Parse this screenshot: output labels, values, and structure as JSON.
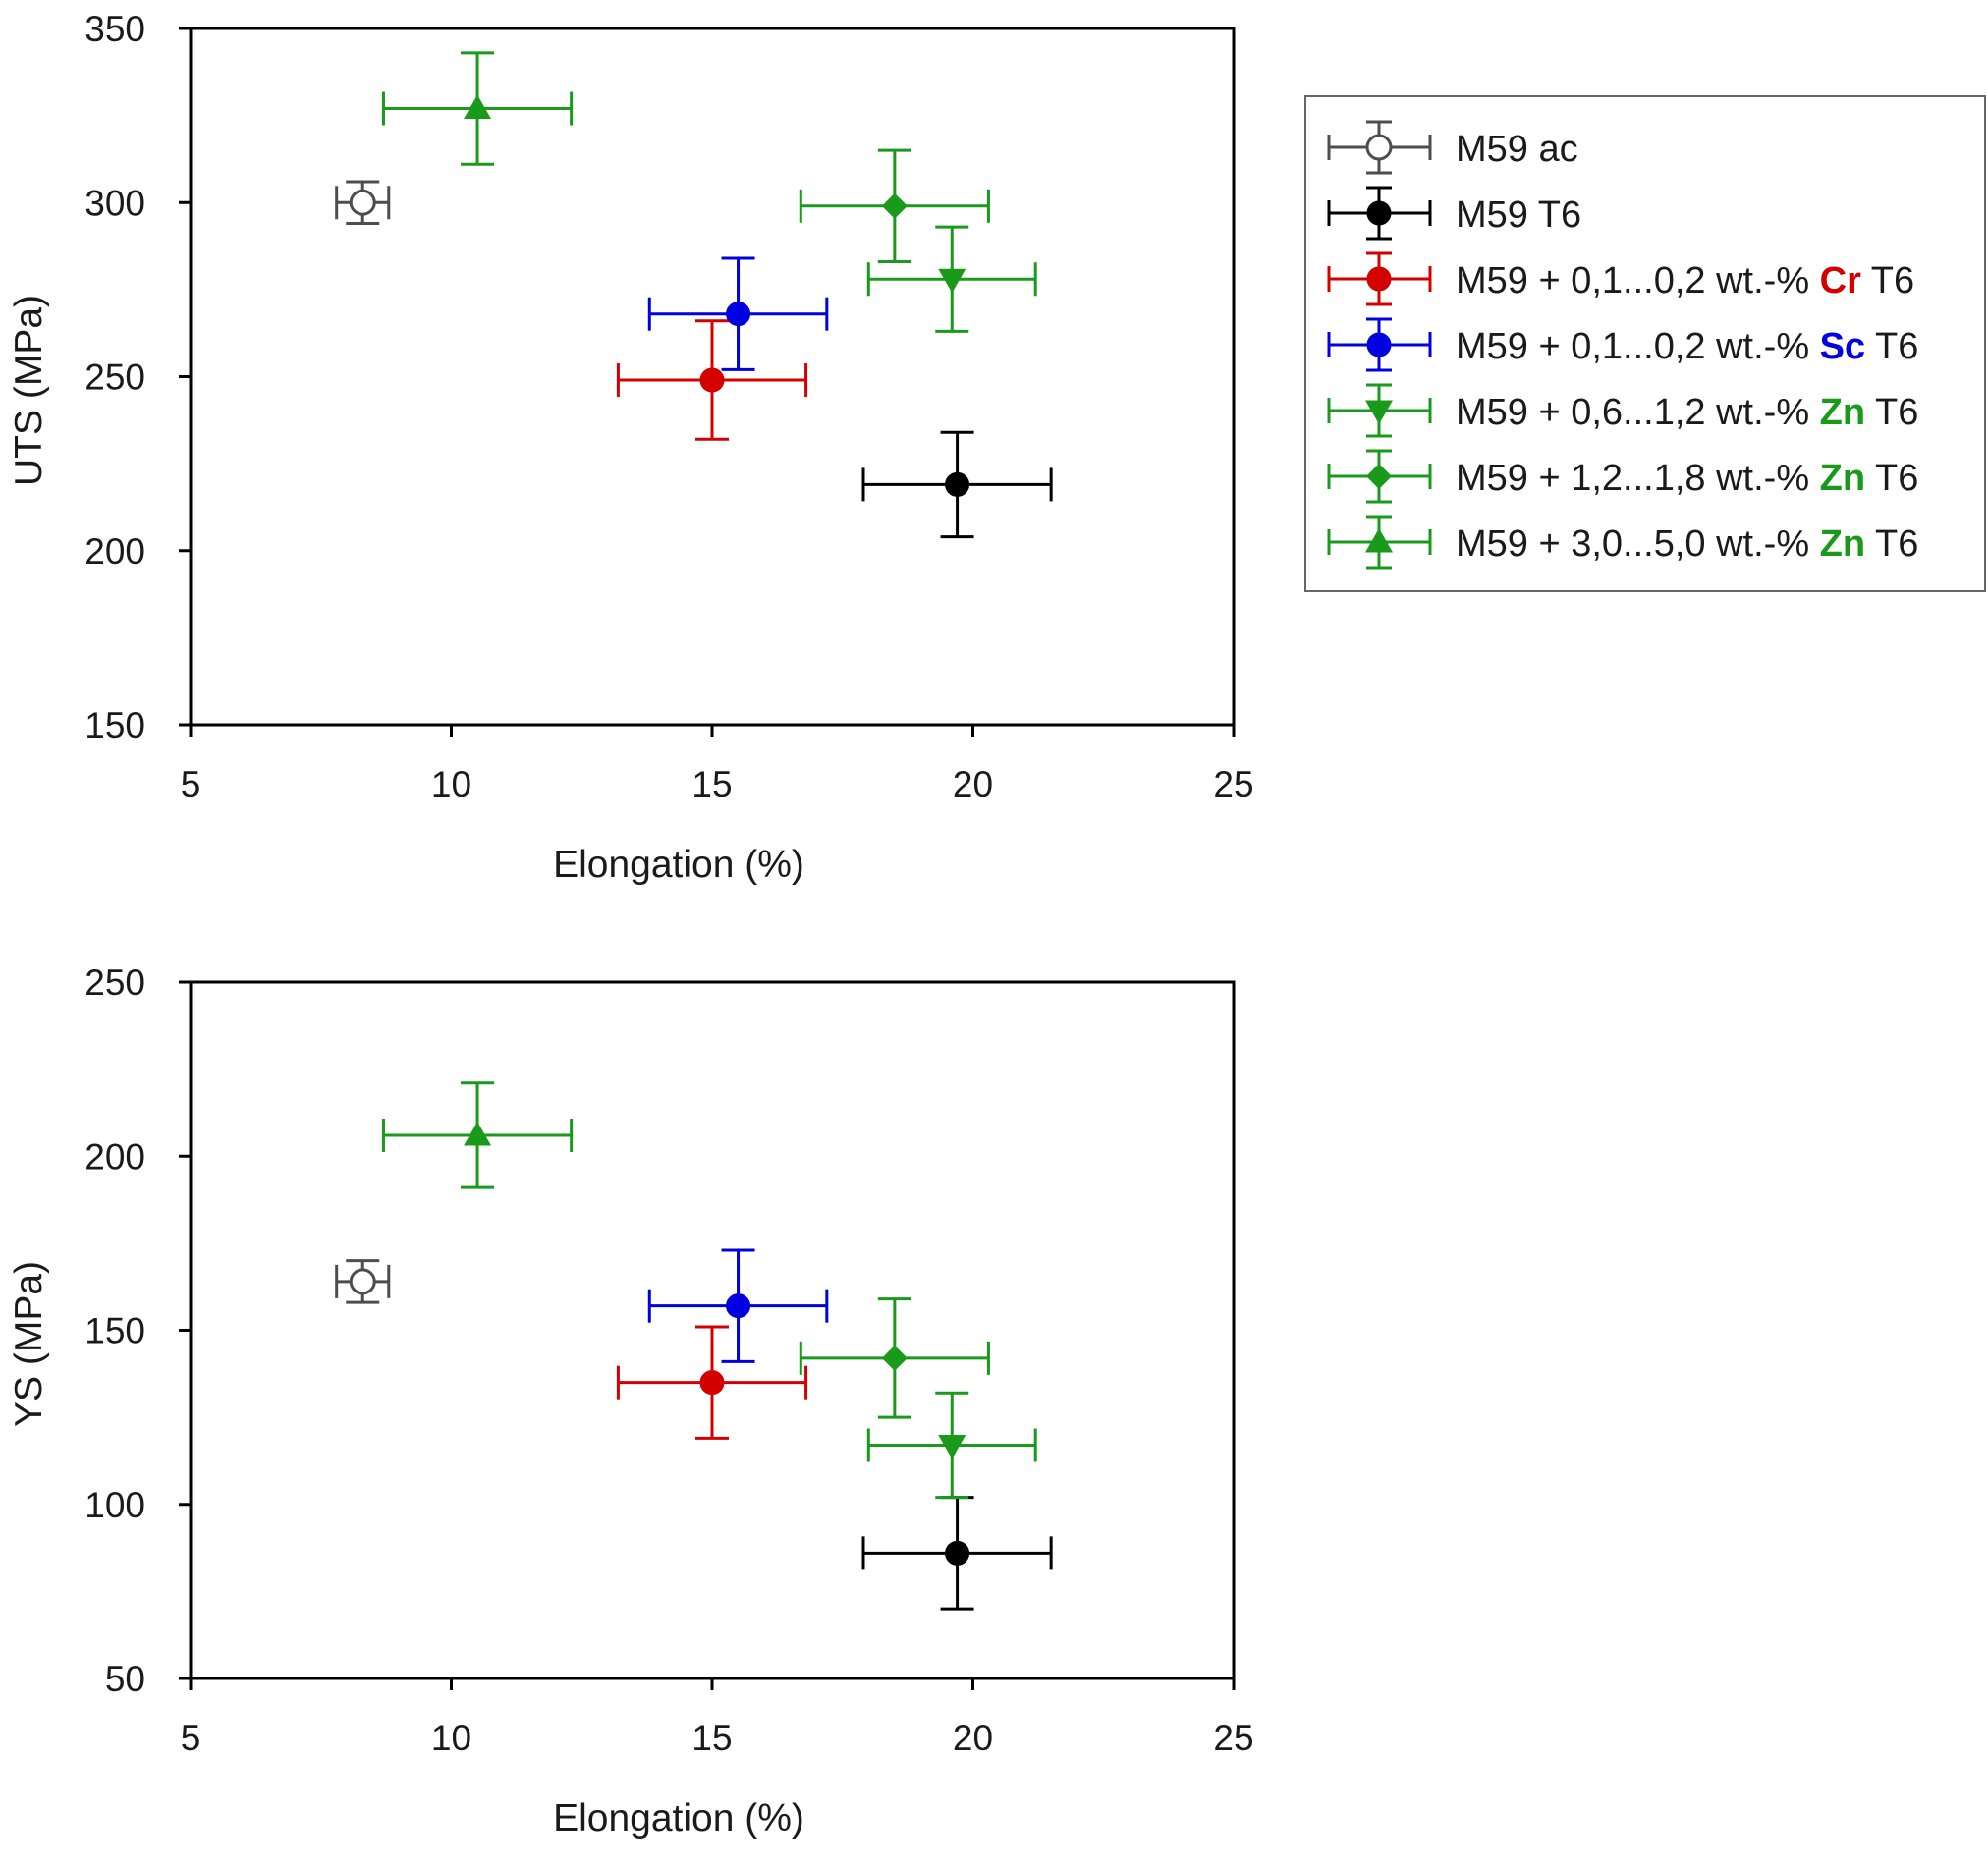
{
  "chart_data": [
    {
      "type": "scatter",
      "error_bars": true,
      "xlabel": "Elongation (%)",
      "ylabel": "UTS (MPa)",
      "xlim": [
        5,
        25
      ],
      "ylim": [
        150,
        350
      ],
      "xticks": [
        "5",
        "10",
        "15",
        "20",
        "25"
      ],
      "yticks": [
        "150",
        "200",
        "250",
        "300",
        "350"
      ],
      "grid": false,
      "series": [
        {
          "key": "ac",
          "x": 8.3,
          "y": 300,
          "x_err": 0.5,
          "y_err": 6
        },
        {
          "key": "t6",
          "x": 19.7,
          "y": 219,
          "x_err": 1.8,
          "y_err": 15
        },
        {
          "key": "cr",
          "x": 15.0,
          "y": 249,
          "x_err": 1.8,
          "y_err": 17
        },
        {
          "key": "sc",
          "x": 15.5,
          "y": 268,
          "x_err": 1.7,
          "y_err": 16
        },
        {
          "key": "zn1",
          "x": 19.6,
          "y": 278,
          "x_err": 1.6,
          "y_err": 15
        },
        {
          "key": "zn2",
          "x": 18.5,
          "y": 299,
          "x_err": 1.8,
          "y_err": 16
        },
        {
          "key": "zn3",
          "x": 10.5,
          "y": 327,
          "x_err": 1.8,
          "y_err": 16
        }
      ]
    },
    {
      "type": "scatter",
      "error_bars": true,
      "xlabel": "Elongation (%)",
      "ylabel": "YS (MPa)",
      "xlim": [
        5,
        25
      ],
      "ylim": [
        50,
        250
      ],
      "xticks": [
        "5",
        "10",
        "15",
        "20",
        "25"
      ],
      "yticks": [
        "50",
        "100",
        "150",
        "200",
        "250"
      ],
      "grid": false,
      "series": [
        {
          "key": "ac",
          "x": 8.3,
          "y": 164,
          "x_err": 0.5,
          "y_err": 6
        },
        {
          "key": "t6",
          "x": 19.7,
          "y": 86,
          "x_err": 1.8,
          "y_err": 16
        },
        {
          "key": "cr",
          "x": 15.0,
          "y": 135,
          "x_err": 1.8,
          "y_err": 16
        },
        {
          "key": "sc",
          "x": 15.5,
          "y": 157,
          "x_err": 1.7,
          "y_err": 16
        },
        {
          "key": "zn1",
          "x": 19.6,
          "y": 117,
          "x_err": 1.6,
          "y_err": 15
        },
        {
          "key": "zn2",
          "x": 18.5,
          "y": 142,
          "x_err": 1.8,
          "y_err": 17
        },
        {
          "key": "zn3",
          "x": 10.5,
          "y": 206,
          "x_err": 1.8,
          "y_err": 15
        }
      ]
    }
  ],
  "legend": {
    "placement": "right of top plot",
    "entries": [
      {
        "key": "ac",
        "marker": "open-circle",
        "color": "#4d4d4d",
        "parts": [
          {
            "text": "M59 ac",
            "color": "#1a1a1a",
            "bold": false
          }
        ]
      },
      {
        "key": "t6",
        "marker": "filled-circle",
        "color": "#000000",
        "parts": [
          {
            "text": "M59 T6",
            "color": "#1a1a1a",
            "bold": false
          }
        ]
      },
      {
        "key": "cr",
        "marker": "filled-circle",
        "color": "#d40000",
        "parts": [
          {
            "text": "M59 + 0,1...0,2 wt.-% ",
            "color": "#1a1a1a",
            "bold": false
          },
          {
            "text": "Cr",
            "color": "#d40000",
            "bold": true
          },
          {
            "text": " T6",
            "color": "#1a1a1a",
            "bold": false
          }
        ]
      },
      {
        "key": "sc",
        "marker": "filled-circle",
        "color": "#0000e0",
        "parts": [
          {
            "text": "M59 + 0,1...0,2 wt.-% ",
            "color": "#1a1a1a",
            "bold": false
          },
          {
            "text": "Sc",
            "color": "#0000e0",
            "bold": true
          },
          {
            "text": " T6",
            "color": "#1a1a1a",
            "bold": false
          }
        ]
      },
      {
        "key": "zn1",
        "marker": "triangle-down",
        "color": "#1a9a1a",
        "parts": [
          {
            "text": "M59 + 0,6...1,2 wt.-% ",
            "color": "#1a1a1a",
            "bold": false
          },
          {
            "text": "Zn",
            "color": "#1a9a1a",
            "bold": true
          },
          {
            "text": " T6",
            "color": "#1a1a1a",
            "bold": false
          }
        ]
      },
      {
        "key": "zn2",
        "marker": "diamond",
        "color": "#1a9a1a",
        "parts": [
          {
            "text": "M59 + 1,2...1,8 wt.-% ",
            "color": "#1a1a1a",
            "bold": false
          },
          {
            "text": "Zn",
            "color": "#1a9a1a",
            "bold": true
          },
          {
            "text": " T6",
            "color": "#1a1a1a",
            "bold": false
          }
        ]
      },
      {
        "key": "zn3",
        "marker": "triangle-up",
        "color": "#1a9a1a",
        "parts": [
          {
            "text": "M59 + 3,0...5,0 wt.-% ",
            "color": "#1a1a1a",
            "bold": false
          },
          {
            "text": "Zn",
            "color": "#1a9a1a",
            "bold": true
          },
          {
            "text": " T6",
            "color": "#1a1a1a",
            "bold": false
          }
        ]
      }
    ]
  }
}
